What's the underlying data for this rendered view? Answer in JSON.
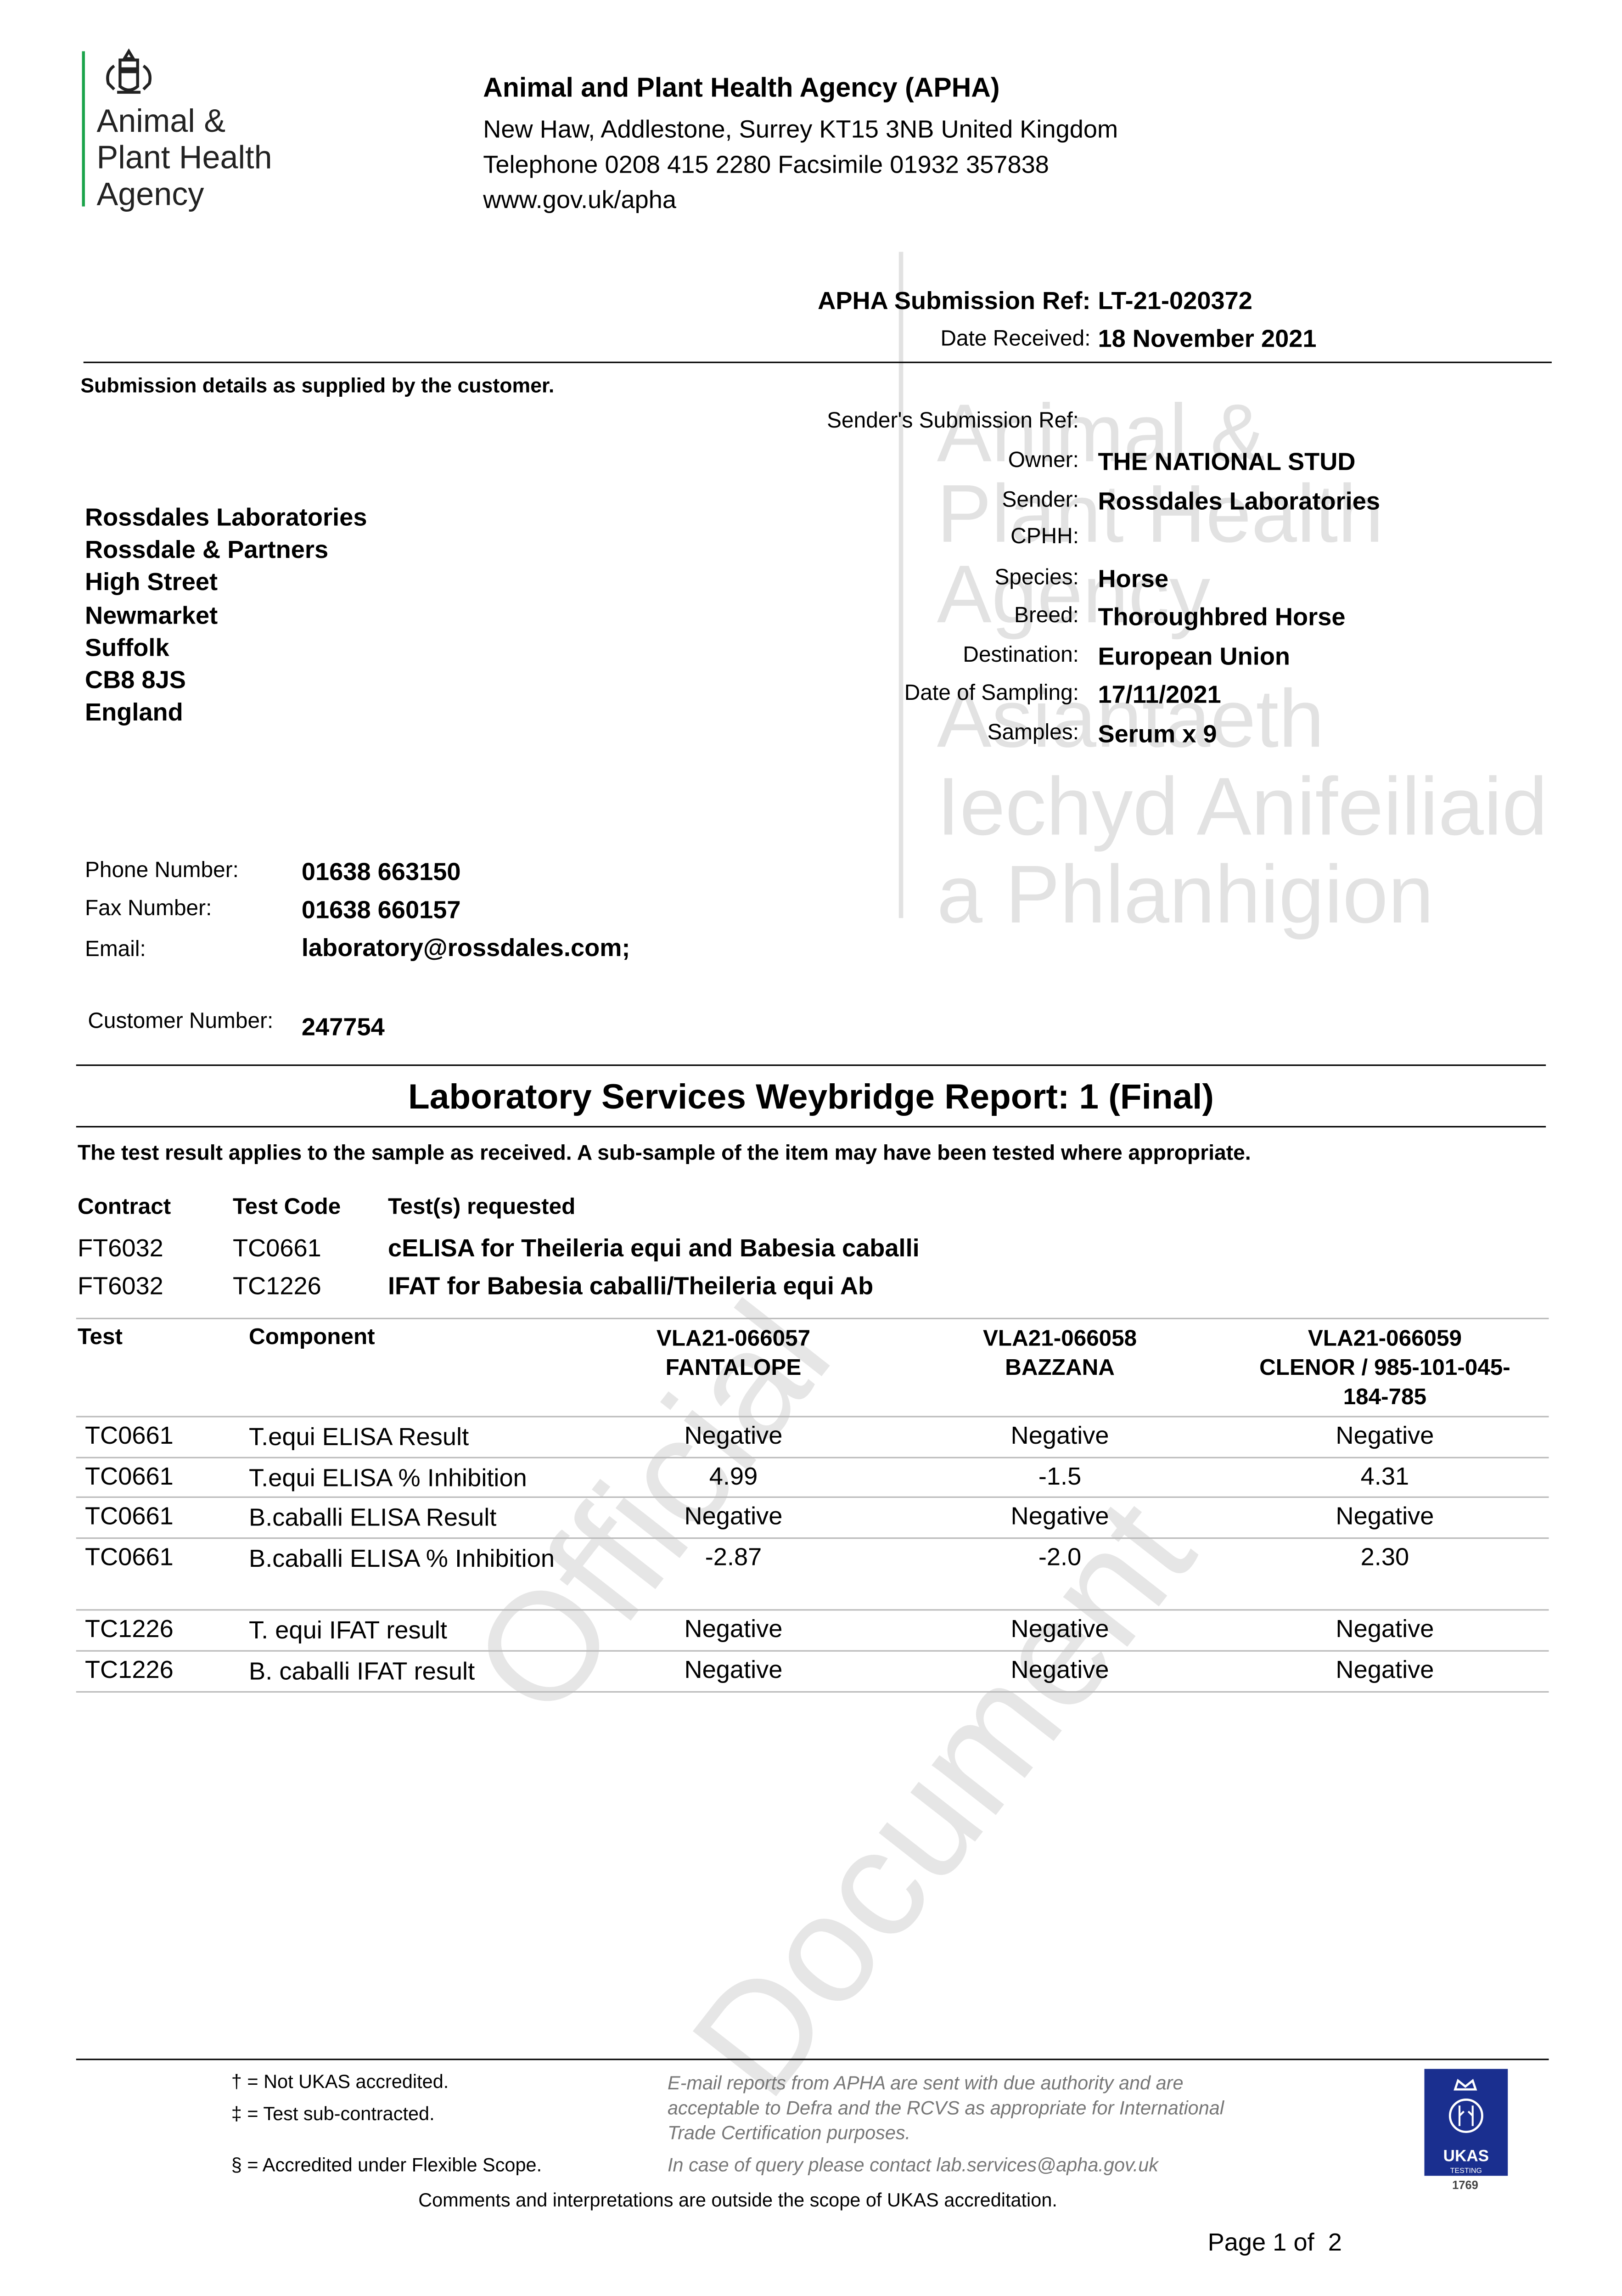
{
  "logo": {
    "text_lines": [
      "Animal &",
      "Plant Health",
      "Agency"
    ],
    "accent": "#1aa34a"
  },
  "header": {
    "org": "Animal and Plant Health Agency (APHA)",
    "address": "New Haw, Addlestone, Surrey KT15 3NB United Kingdom",
    "phone_line": "Telephone 0208 415 2280 Facsimile 01932 357838",
    "web": "www.gov.uk/apha"
  },
  "watermark": {
    "lines": [
      "Animal &",
      "Plant Health",
      "Agency",
      "Asiantaeth",
      "Iechyd Anifeiliaid",
      "a Phlanhigion"
    ],
    "diagonal": [
      "Official",
      "Document"
    ]
  },
  "ref": {
    "submission_label": "APHA Submission Ref:",
    "submission_value": "LT-21-020372",
    "date_label": "Date Received:",
    "date_value": "18 November 2021"
  },
  "submission_note": "Submission details as supplied by the customer.",
  "details": [
    {
      "label": "Sender's Submission Ref:",
      "value": ""
    },
    {
      "label": "Owner:",
      "value": "THE NATIONAL STUD"
    },
    {
      "label": "Sender:",
      "value": "Rossdales Laboratories"
    },
    {
      "label": "CPHH:",
      "value": ""
    },
    {
      "label": "Species:",
      "value": "Horse"
    },
    {
      "label": "Breed:",
      "value": "Thoroughbred Horse"
    },
    {
      "label": "Destination:",
      "value": "European Union"
    },
    {
      "label": "Date of Sampling:",
      "value": "17/11/2021"
    },
    {
      "label": "Samples:",
      "value": "Serum x 9"
    }
  ],
  "address": [
    "Rossdales Laboratories",
    "Rossdale & Partners",
    "High Street",
    "Newmarket",
    "Suffolk",
    "CB8 8JS",
    "England"
  ],
  "contact": [
    {
      "label": "Phone Number:",
      "value": "01638 663150"
    },
    {
      "label": "Fax Number:",
      "value": "01638 660157"
    },
    {
      "label": "Email:",
      "value": "laboratory@rossdales.com;"
    }
  ],
  "customer": {
    "label": "Customer Number:",
    "value": "247754"
  },
  "report": {
    "title": "Laboratory Services Weybridge Report: 1 (Final)",
    "disclaimer": "The test result applies to the sample as received. A sub-sample of the item may have been tested where appropriate."
  },
  "tests_requested": {
    "headers": [
      "Contract",
      "Test Code",
      "Test(s) requested"
    ],
    "rows": [
      [
        "FT6032",
        "TC0661",
        "cELISA for Theileria equi and Babesia caballi"
      ],
      [
        "FT6032",
        "TC1226",
        "IFAT for Babesia caballi/Theileria equi Ab"
      ]
    ]
  },
  "results": {
    "headers": [
      "Test",
      "Component"
    ],
    "samples": [
      [
        "VLA21-066057",
        "FANTALOPE"
      ],
      [
        "VLA21-066058",
        "BAZZANA"
      ],
      [
        "VLA21-066059",
        "CLENOR / 985-101-045-",
        "184-785"
      ]
    ],
    "rows": [
      [
        "TC0661",
        "T.equi ELISA Result",
        "Negative",
        "Negative",
        "Negative"
      ],
      [
        "TC0661",
        "T.equi ELISA % Inhibition",
        "4.99",
        "-1.5",
        "4.31"
      ],
      [
        "TC0661",
        "B.caballi ELISA Result",
        "Negative",
        "Negative",
        "Negative"
      ],
      [
        "TC0661",
        "B.caballi ELISA % Inhibition",
        "-2.87",
        "-2.0",
        "2.30"
      ],
      [
        "TC1226",
        "T. equi IFAT result",
        "Negative",
        "Negative",
        "Negative"
      ],
      [
        "TC1226",
        "B. caballi IFAT result",
        "Negative",
        "Negative",
        "Negative"
      ]
    ]
  },
  "footer": {
    "notes": [
      "† = Not UKAS accredited.",
      "‡ = Test sub-contracted.",
      "§ = Accredited under Flexible Scope."
    ],
    "email_note": [
      "E-mail reports from APHA are sent with due authority and are",
      "acceptable to Defra and the RCVS as appropriate for International",
      "Trade Certification purposes."
    ],
    "query": "In case of query please contact lab.services@apha.gov.uk",
    "comments": "Comments and interpretations are outside the scope of UKAS accreditation.",
    "ukas": {
      "text": "UKAS",
      "sub": "TESTING",
      "number": "1769",
      "color": "#1a2f8f"
    },
    "page": "Page 1 of  2"
  }
}
